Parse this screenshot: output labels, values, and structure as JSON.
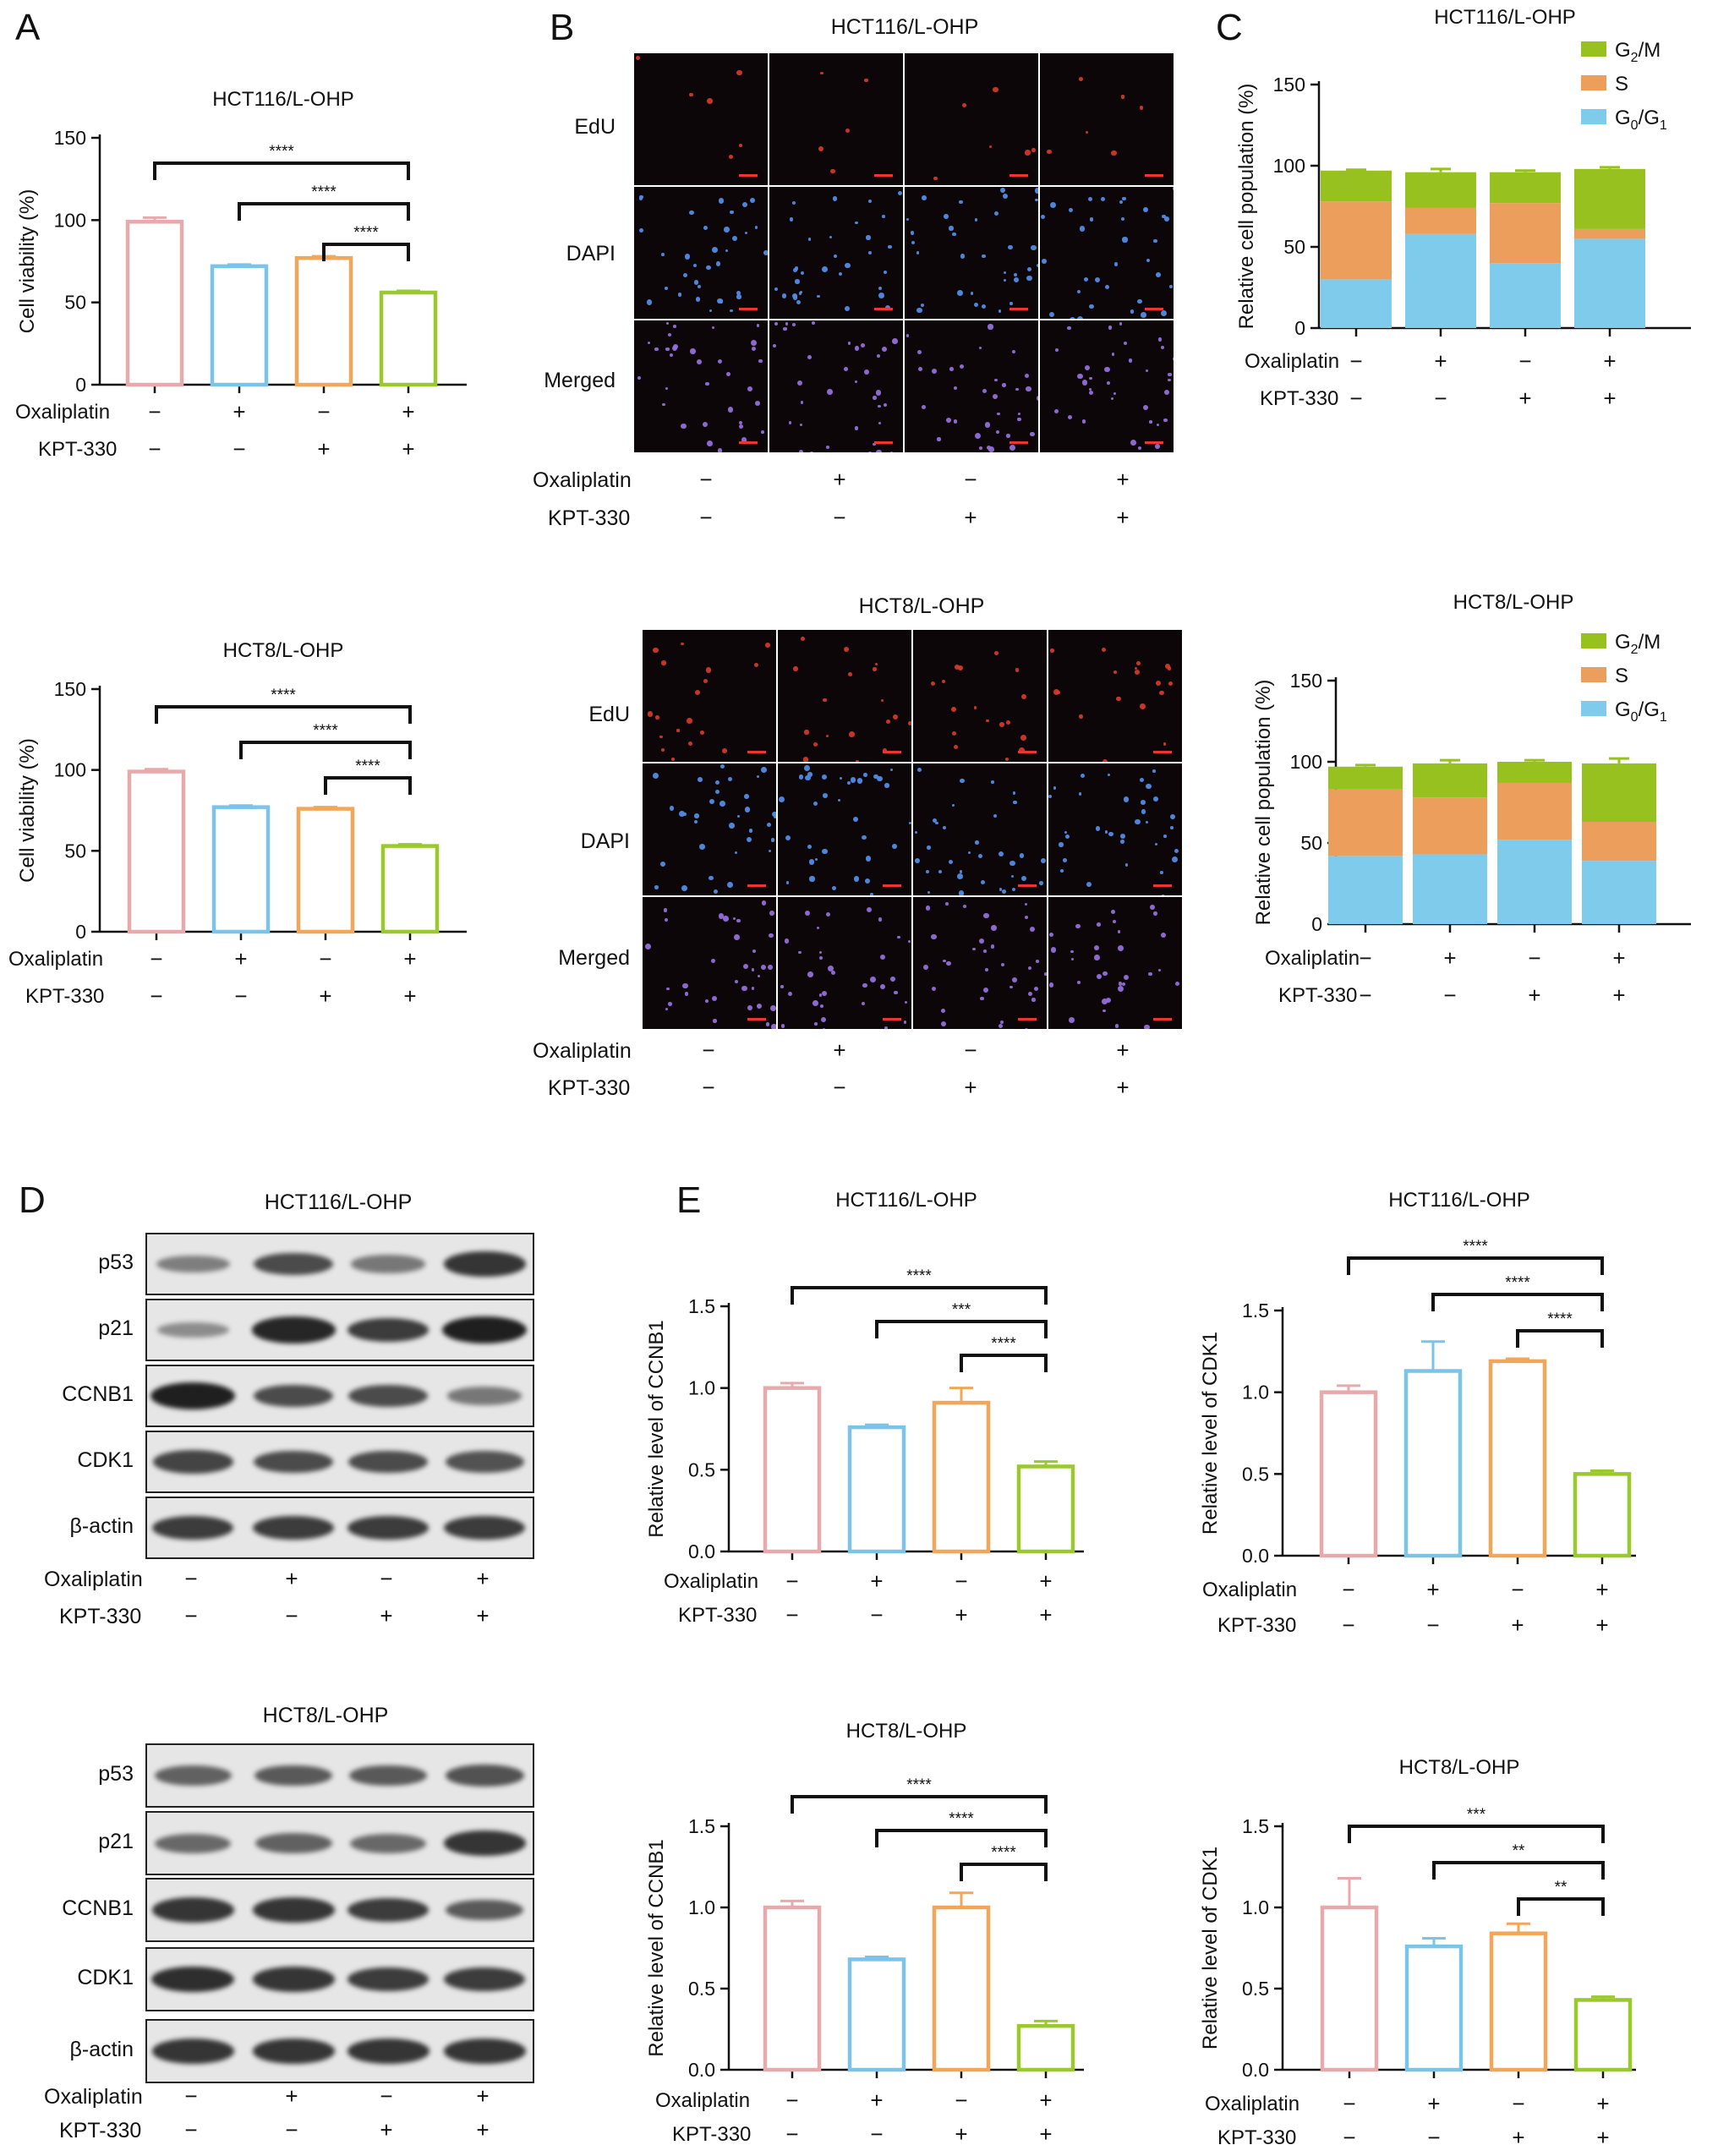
{
  "panel_labels": [
    "A",
    "B",
    "C",
    "D",
    "E"
  ],
  "treatment": {
    "oxaliplatin_label": "Oxaliplatin",
    "kpt_label": "KPT-330",
    "oxaliplatin": [
      "−",
      "+",
      "−",
      "+"
    ],
    "kpt330": [
      "−",
      "−",
      "+",
      "+"
    ]
  },
  "colors": {
    "pink": "#e8a9ad",
    "blue": "#7cc3ea",
    "orange": "#f2a65a",
    "green": "#9ac92e",
    "g2m": "#96c11f",
    "s": "#ec9e5c",
    "g0g1": "#7ecbeb"
  },
  "microscopy": [
    {
      "title": "HCT116/L-OHP",
      "rows": [
        "EdU",
        "DAPI",
        "Merged"
      ]
    },
    {
      "title": "HCT8/L-OHP",
      "rows": [
        "EdU",
        "DAPI",
        "Merged"
      ]
    }
  ],
  "blots": [
    {
      "title": "HCT116/L-OHP",
      "rows": [
        "p53",
        "p21",
        "CCNB1",
        "CDK1",
        "β-actin"
      ],
      "intensity": [
        [
          0.35,
          0.7,
          0.4,
          0.85
        ],
        [
          0.25,
          0.95,
          0.8,
          1.0
        ],
        [
          1.0,
          0.7,
          0.7,
          0.4
        ],
        [
          0.75,
          0.7,
          0.7,
          0.65
        ],
        [
          0.8,
          0.8,
          0.8,
          0.8
        ]
      ]
    },
    {
      "title": "HCT8/L-OHP",
      "rows": [
        "p53",
        "p21",
        "CCNB1",
        "CDK1",
        "β-actin"
      ],
      "intensity": [
        [
          0.55,
          0.6,
          0.6,
          0.65
        ],
        [
          0.5,
          0.55,
          0.5,
          0.85
        ],
        [
          0.85,
          0.85,
          0.8,
          0.6
        ],
        [
          0.9,
          0.85,
          0.8,
          0.8
        ],
        [
          0.85,
          0.85,
          0.85,
          0.85
        ]
      ]
    }
  ],
  "chart_data": [
    {
      "id": "A1",
      "type": "bar",
      "title": "HCT116/L-OHP",
      "ylabel": "Cell viability (%)",
      "ylim": [
        0,
        150
      ],
      "yticks": [
        0,
        50,
        100,
        150
      ],
      "yticklabels": [
        "0",
        "50",
        "100",
        "150"
      ],
      "values": [
        99,
        72,
        77,
        56
      ],
      "errors": [
        2.5,
        1,
        1,
        1
      ],
      "sig": [
        {
          "from": 0,
          "to": 3,
          "label": "****"
        },
        {
          "from": 1,
          "to": 3,
          "label": "****"
        },
        {
          "from": 2,
          "to": 3,
          "label": "****"
        }
      ]
    },
    {
      "id": "A2",
      "type": "bar",
      "title": "HCT8/L-OHP",
      "ylabel": "Cell viability (%)",
      "ylim": [
        0,
        150
      ],
      "yticks": [
        0,
        50,
        100,
        150
      ],
      "yticklabels": [
        "0",
        "50",
        "100",
        "150"
      ],
      "values": [
        99,
        77,
        76,
        53
      ],
      "errors": [
        1.5,
        1,
        1,
        1
      ],
      "sig": [
        {
          "from": 0,
          "to": 3,
          "label": "****"
        },
        {
          "from": 1,
          "to": 3,
          "label": "****"
        },
        {
          "from": 2,
          "to": 3,
          "label": "****"
        }
      ]
    },
    {
      "id": "C1",
      "type": "stacked-bar",
      "title": "HCT116/L-OHP",
      "ylabel": "Relative cell population (%)",
      "ylim": [
        0,
        150
      ],
      "yticks": [
        0,
        50,
        100,
        150
      ],
      "yticklabels": [
        "0",
        "50",
        "100",
        "150"
      ],
      "series": [
        {
          "name": "G0/G1",
          "values": [
            30,
            58,
            40,
            55
          ]
        },
        {
          "name": "S",
          "values": [
            48,
            16,
            37,
            6
          ]
        },
        {
          "name": "G2/M",
          "values": [
            19,
            22,
            19,
            37
          ]
        }
      ],
      "errors": [
        0.5,
        2,
        1,
        1
      ]
    },
    {
      "id": "C2",
      "type": "stacked-bar",
      "title": "HCT8/L-OHP",
      "ylabel": "Relative cell population (%)",
      "ylim": [
        0,
        150
      ],
      "yticks": [
        0,
        50,
        100,
        150
      ],
      "yticklabels": [
        "0",
        "50",
        "100",
        "150"
      ],
      "series": [
        {
          "name": "G0/G1",
          "values": [
            42,
            43,
            52,
            39
          ]
        },
        {
          "name": "S",
          "values": [
            41,
            35,
            35,
            24
          ]
        },
        {
          "name": "G2/M",
          "values": [
            14,
            21,
            13,
            36
          ]
        }
      ],
      "errors": [
        1,
        2,
        1,
        3
      ]
    },
    {
      "id": "E1",
      "type": "bar",
      "title": "HCT116/L-OHP",
      "ylabel": "Relative level of CCNB1",
      "ylim": [
        0,
        1.5
      ],
      "yticks": [
        0,
        0.5,
        1,
        1.5
      ],
      "yticklabels": [
        "0.0",
        "0.5",
        "1.0",
        "1.5"
      ],
      "values": [
        1.0,
        0.76,
        0.91,
        0.52
      ],
      "errors": [
        0.03,
        0.015,
        0.09,
        0.03
      ],
      "sig": [
        {
          "from": 0,
          "to": 3,
          "label": "****"
        },
        {
          "from": 1,
          "to": 3,
          "label": "***"
        },
        {
          "from": 2,
          "to": 3,
          "label": "****"
        }
      ]
    },
    {
      "id": "E2",
      "type": "bar",
      "title": "HCT116/L-OHP",
      "ylabel": "Relative level of CDK1",
      "ylim": [
        0,
        1.5
      ],
      "yticks": [
        0,
        0.5,
        1,
        1.5
      ],
      "yticklabels": [
        "0.0",
        "0.5",
        "1.0",
        "1.5"
      ],
      "values": [
        1.0,
        1.13,
        1.19,
        0.5
      ],
      "errors": [
        0.04,
        0.18,
        0.015,
        0.02
      ],
      "sig": [
        {
          "from": 0,
          "to": 3,
          "label": "****"
        },
        {
          "from": 1,
          "to": 3,
          "label": "****"
        },
        {
          "from": 2,
          "to": 3,
          "label": "****"
        }
      ]
    },
    {
      "id": "E3",
      "type": "bar",
      "title": "HCT8/L-OHP",
      "ylabel": "Relative level of CCNB1",
      "ylim": [
        0,
        1.5
      ],
      "yticks": [
        0,
        0.5,
        1,
        1.5
      ],
      "yticklabels": [
        "0.0",
        "0.5",
        "1.0",
        "1.5"
      ],
      "values": [
        1.0,
        0.68,
        1.0,
        0.27
      ],
      "errors": [
        0.04,
        0.015,
        0.09,
        0.03
      ],
      "sig": [
        {
          "from": 0,
          "to": 3,
          "label": "****"
        },
        {
          "from": 1,
          "to": 3,
          "label": "****"
        },
        {
          "from": 2,
          "to": 3,
          "label": "****"
        }
      ]
    },
    {
      "id": "E4",
      "type": "bar",
      "title": "HCT8/L-OHP",
      "ylabel": "Relative level of CDK1",
      "ylim": [
        0,
        1.5
      ],
      "yticks": [
        0,
        0.5,
        1,
        1.5
      ],
      "yticklabels": [
        "0.0",
        "0.5",
        "1.0",
        "1.5"
      ],
      "values": [
        1.0,
        0.76,
        0.84,
        0.43
      ],
      "errors": [
        0.18,
        0.05,
        0.06,
        0.02
      ],
      "sig": [
        {
          "from": 0,
          "to": 3,
          "label": "***"
        },
        {
          "from": 1,
          "to": 3,
          "label": "**"
        },
        {
          "from": 2,
          "to": 3,
          "label": "**"
        }
      ]
    }
  ]
}
